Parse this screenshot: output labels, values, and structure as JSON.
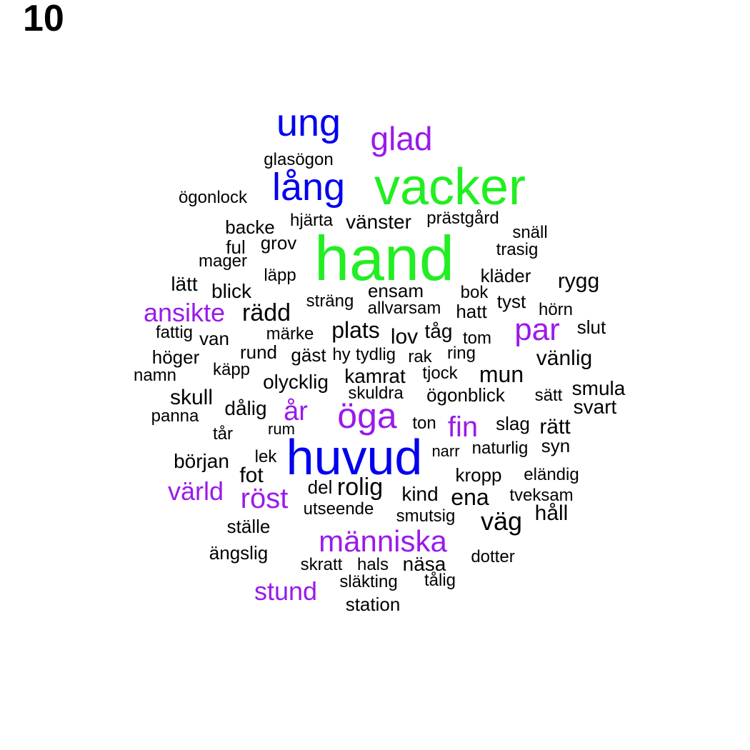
{
  "panel_label": "10",
  "colors": {
    "green": "#22ee22",
    "blue": "#0000ee",
    "purple": "#9a1aea",
    "black": "#000000"
  },
  "words": [
    {
      "text": "hand",
      "color": "green"
    },
    {
      "text": "vacker",
      "color": "green"
    },
    {
      "text": "huvud",
      "color": "blue"
    },
    {
      "text": "ung",
      "color": "blue"
    },
    {
      "text": "lång",
      "color": "blue"
    },
    {
      "text": "glad",
      "color": "purple"
    },
    {
      "text": "öga",
      "color": "purple"
    },
    {
      "text": "människa",
      "color": "purple"
    },
    {
      "text": "ansikte",
      "color": "purple"
    },
    {
      "text": "par",
      "color": "purple"
    },
    {
      "text": "år",
      "color": "purple"
    },
    {
      "text": "fin",
      "color": "purple"
    },
    {
      "text": "röst",
      "color": "purple"
    },
    {
      "text": "värld",
      "color": "purple"
    },
    {
      "text": "stund",
      "color": "purple"
    },
    {
      "text": "glasögon",
      "color": "black"
    },
    {
      "text": "ögonlock",
      "color": "black"
    },
    {
      "text": "backe",
      "color": "black"
    },
    {
      "text": "hjärta",
      "color": "black"
    },
    {
      "text": "vänster",
      "color": "black"
    },
    {
      "text": "prästgård",
      "color": "black"
    },
    {
      "text": "snäll",
      "color": "black"
    },
    {
      "text": "ful",
      "color": "black"
    },
    {
      "text": "grov",
      "color": "black"
    },
    {
      "text": "trasig",
      "color": "black"
    },
    {
      "text": "mager",
      "color": "black"
    },
    {
      "text": "läpp",
      "color": "black"
    },
    {
      "text": "kläder",
      "color": "black"
    },
    {
      "text": "rygg",
      "color": "black"
    },
    {
      "text": "lätt",
      "color": "black"
    },
    {
      "text": "blick",
      "color": "black"
    },
    {
      "text": "ensam",
      "color": "black"
    },
    {
      "text": "bok",
      "color": "black"
    },
    {
      "text": "tyst",
      "color": "black"
    },
    {
      "text": "sträng",
      "color": "black"
    },
    {
      "text": "allvarsam",
      "color": "black"
    },
    {
      "text": "hatt",
      "color": "black"
    },
    {
      "text": "hörn",
      "color": "black"
    },
    {
      "text": "rädd",
      "color": "black"
    },
    {
      "text": "fattig",
      "color": "black"
    },
    {
      "text": "van",
      "color": "black"
    },
    {
      "text": "märke",
      "color": "black"
    },
    {
      "text": "plats",
      "color": "black"
    },
    {
      "text": "lov",
      "color": "black"
    },
    {
      "text": "tåg",
      "color": "black"
    },
    {
      "text": "tom",
      "color": "black"
    },
    {
      "text": "slut",
      "color": "black"
    },
    {
      "text": "höger",
      "color": "black"
    },
    {
      "text": "rund",
      "color": "black"
    },
    {
      "text": "gäst",
      "color": "black"
    },
    {
      "text": "hy",
      "color": "black"
    },
    {
      "text": "tydlig",
      "color": "black"
    },
    {
      "text": "rak",
      "color": "black"
    },
    {
      "text": "ring",
      "color": "black"
    },
    {
      "text": "vänlig",
      "color": "black"
    },
    {
      "text": "namn",
      "color": "black"
    },
    {
      "text": "käpp",
      "color": "black"
    },
    {
      "text": "kamrat",
      "color": "black"
    },
    {
      "text": "tjock",
      "color": "black"
    },
    {
      "text": "mun",
      "color": "black"
    },
    {
      "text": "olycklig",
      "color": "black"
    },
    {
      "text": "skuldra",
      "color": "black"
    },
    {
      "text": "ögonblick",
      "color": "black"
    },
    {
      "text": "sätt",
      "color": "black"
    },
    {
      "text": "smula",
      "color": "black"
    },
    {
      "text": "skull",
      "color": "black"
    },
    {
      "text": "dålig",
      "color": "black"
    },
    {
      "text": "svart",
      "color": "black"
    },
    {
      "text": "panna",
      "color": "black"
    },
    {
      "text": "rum",
      "color": "black"
    },
    {
      "text": "ton",
      "color": "black"
    },
    {
      "text": "slag",
      "color": "black"
    },
    {
      "text": "rätt",
      "color": "black"
    },
    {
      "text": "tår",
      "color": "black"
    },
    {
      "text": "syn",
      "color": "black"
    },
    {
      "text": "början",
      "color": "black"
    },
    {
      "text": "lek",
      "color": "black"
    },
    {
      "text": "narr",
      "color": "black"
    },
    {
      "text": "naturlig",
      "color": "black"
    },
    {
      "text": "fot",
      "color": "black"
    },
    {
      "text": "kropp",
      "color": "black"
    },
    {
      "text": "eländig",
      "color": "black"
    },
    {
      "text": "del",
      "color": "black"
    },
    {
      "text": "rolig",
      "color": "black"
    },
    {
      "text": "kind",
      "color": "black"
    },
    {
      "text": "ena",
      "color": "black"
    },
    {
      "text": "tveksam",
      "color": "black"
    },
    {
      "text": "utseende",
      "color": "black"
    },
    {
      "text": "smutsig",
      "color": "black"
    },
    {
      "text": "håll",
      "color": "black"
    },
    {
      "text": "ställe",
      "color": "black"
    },
    {
      "text": "väg",
      "color": "black"
    },
    {
      "text": "ängslig",
      "color": "black"
    },
    {
      "text": "dotter",
      "color": "black"
    },
    {
      "text": "skratt",
      "color": "black"
    },
    {
      "text": "hals",
      "color": "black"
    },
    {
      "text": "näsa",
      "color": "black"
    },
    {
      "text": "släkting",
      "color": "black"
    },
    {
      "text": "tålig",
      "color": "black"
    },
    {
      "text": "station",
      "color": "black"
    }
  ]
}
